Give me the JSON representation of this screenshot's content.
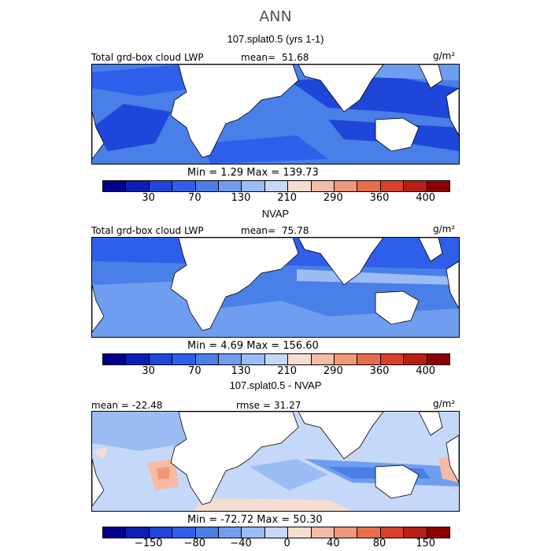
{
  "title": "ANN",
  "panels": [
    {
      "subtitle": "107.splat0.5 (yrs 1-1)",
      "left_label": "Total grd-box cloud LWP",
      "mean_label": "mean=",
      "mean_value": "51.68",
      "units": "g/m²",
      "minmax": "Min =    1.29  Max =  139.73"
    },
    {
      "subtitle": "NVAP",
      "left_label": "Total grd-box cloud LWP",
      "mean_label": "mean=",
      "mean_value": "75.78",
      "units": "g/m²",
      "minmax": "Min =    4.69  Max =  156.60"
    },
    {
      "subtitle": "107.splat0.5 - NVAP",
      "left_label": "mean = -22.48",
      "mean_label": "rmse =",
      "mean_value": "31.27",
      "units": "g/m²",
      "minmax": "Min =  -72.72  Max =   50.30"
    }
  ],
  "colorbar_abs": {
    "colors": [
      "#00008c",
      "#0a1fb4",
      "#1e46d8",
      "#2f5fea",
      "#4a7fe8",
      "#6f9ef0",
      "#9bbcf5",
      "#c6d8fa",
      "#f6ddd2",
      "#f6bba5",
      "#f09878",
      "#e86d4c",
      "#d8402a",
      "#b81e14",
      "#8c0000"
    ],
    "ticks": [
      "30",
      "70",
      "130",
      "210",
      "290",
      "360",
      "400"
    ]
  },
  "colorbar_diff": {
    "colors": [
      "#00008c",
      "#0a1fb4",
      "#1e46d8",
      "#2f5fea",
      "#4a7fe8",
      "#6f9ef0",
      "#9bbcf5",
      "#c6d8fa",
      "#f6ddd2",
      "#f6bba5",
      "#f09878",
      "#e86d4c",
      "#d8402a",
      "#b81e14",
      "#8c0000"
    ],
    "ticks": [
      "−150",
      "−80",
      "−40",
      "0",
      "40",
      "80",
      "150"
    ]
  }
}
